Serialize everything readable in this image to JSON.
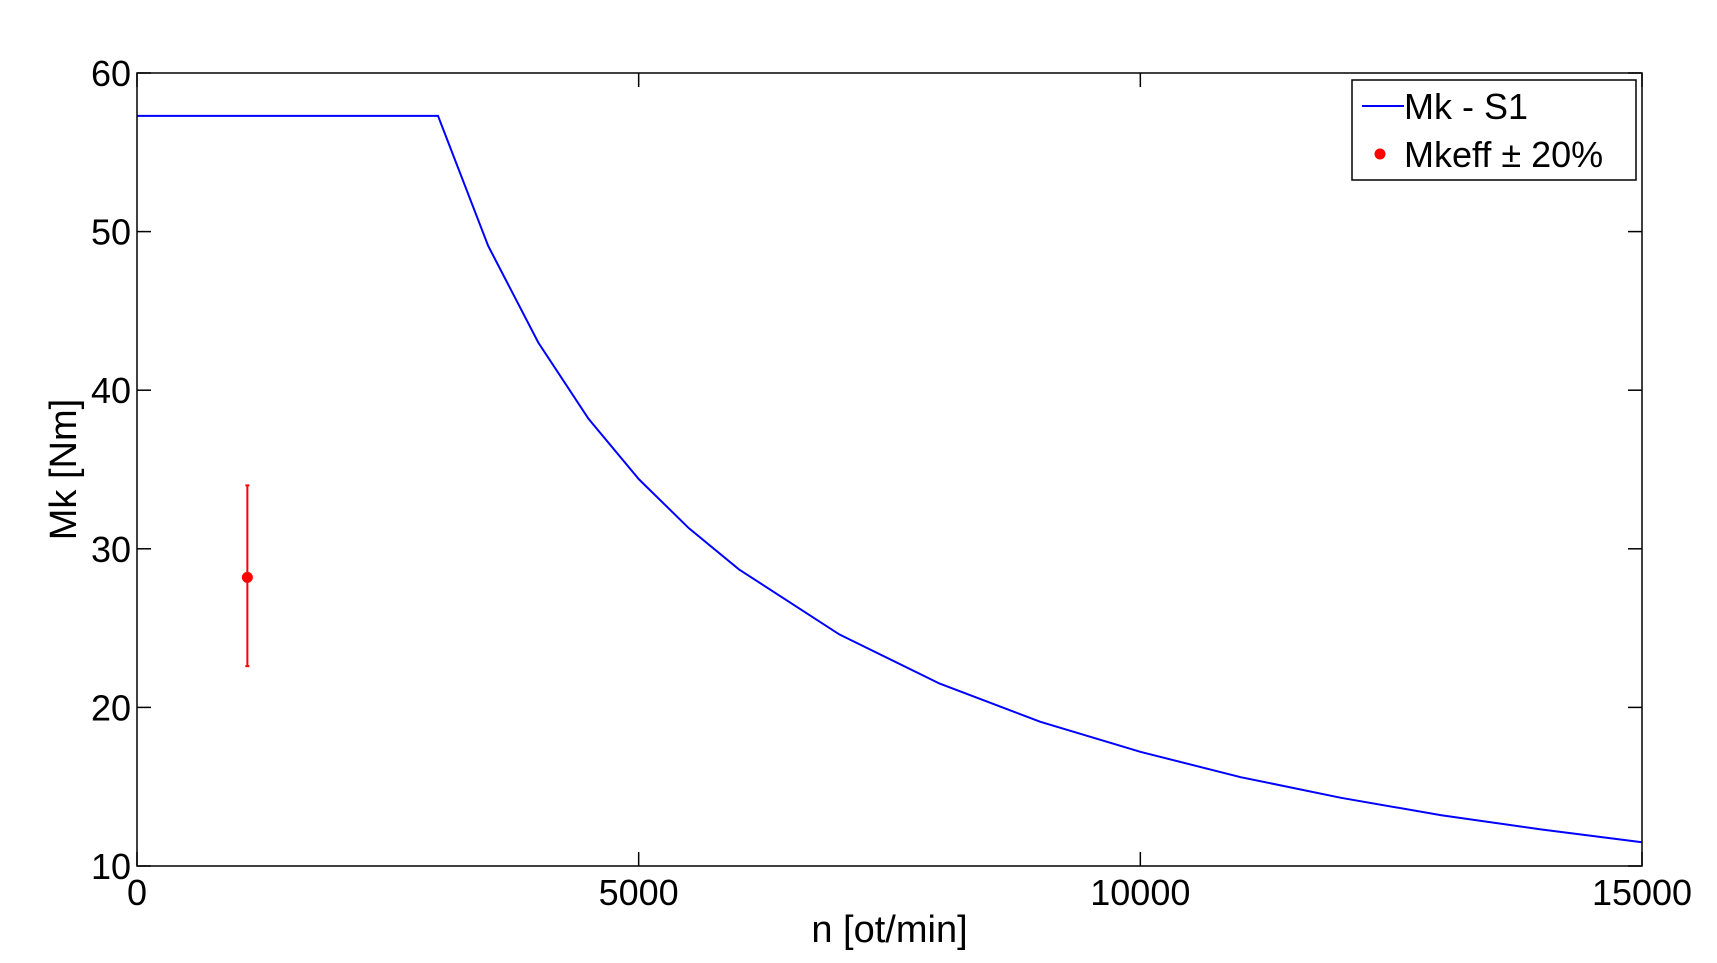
{
  "chart_data": {
    "type": "line",
    "title": "",
    "xlabel": "n [ot/min]",
    "ylabel": "Mk [Nm]",
    "xlim": [
      0,
      15000
    ],
    "ylim": [
      10,
      60
    ],
    "xticks": [
      0,
      5000,
      10000,
      15000
    ],
    "yticks": [
      10,
      20,
      30,
      40,
      50,
      60
    ],
    "grid": false,
    "legend_position": "top-right",
    "series": [
      {
        "name": "Mk - S1",
        "kind": "line",
        "color": "#0000ff",
        "x": [
          0,
          1000,
          2000,
          3000,
          3500,
          4000,
          4500,
          5000,
          5500,
          6000,
          7000,
          8000,
          9000,
          10000,
          11000,
          12000,
          13000,
          14000,
          15000
        ],
        "y": [
          57.3,
          57.3,
          57.3,
          57.3,
          49.1,
          43.0,
          38.2,
          34.4,
          31.3,
          28.7,
          24.6,
          21.5,
          19.1,
          17.2,
          15.6,
          14.3,
          13.2,
          12.3,
          11.5
        ]
      },
      {
        "name": "Mkeff ± 20%",
        "kind": "errorbar",
        "color": "#ff0000",
        "x": [
          1100
        ],
        "y": [
          28.2
        ],
        "y_low": [
          22.6
        ],
        "y_high": [
          34.0
        ]
      }
    ]
  }
}
